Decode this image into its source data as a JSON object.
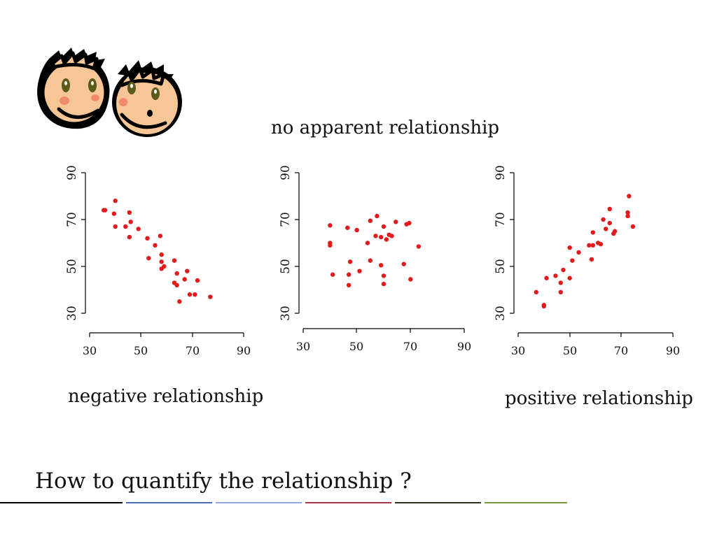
{
  "labels": {
    "middle_caption": "no apparent relationship",
    "left_caption": "negative relationship",
    "right_caption": "positive relationship",
    "question": "How to quantify the relationship ?"
  },
  "colors": {
    "point": "#e31a1c",
    "axis": "#000000",
    "footer_lines": [
      "#000000",
      "#4a6bb0",
      "#8ea8d8",
      "#a3354d",
      "#2d2d1f",
      "#7a9a3a"
    ]
  },
  "chart_data": [
    {
      "type": "scatter",
      "title": "",
      "xlabel": "",
      "ylabel": "",
      "xlim": [
        30,
        90
      ],
      "ylim": [
        30,
        90
      ],
      "xticks": [
        "30",
        "50",
        "70",
        "90"
      ],
      "yticks": [
        "30",
        "50",
        "70",
        "90"
      ],
      "grid": false,
      "points": [
        [
          35.5,
          74
        ],
        [
          36,
          74
        ],
        [
          40,
          78
        ],
        [
          39.5,
          72.5
        ],
        [
          40,
          67
        ],
        [
          44,
          67
        ],
        [
          45.5,
          73
        ],
        [
          46,
          69
        ],
        [
          45.5,
          62.5
        ],
        [
          49,
          66
        ],
        [
          52.5,
          62
        ],
        [
          53,
          53.5
        ],
        [
          55.5,
          59
        ],
        [
          57.5,
          63
        ],
        [
          58,
          55
        ],
        [
          58,
          49
        ],
        [
          59,
          50
        ],
        [
          58,
          52
        ],
        [
          63,
          52.5
        ],
        [
          63,
          43
        ],
        [
          64,
          47
        ],
        [
          64,
          42
        ],
        [
          65,
          35
        ],
        [
          67,
          44.5
        ],
        [
          68,
          48
        ],
        [
          69,
          38
        ],
        [
          71,
          38
        ],
        [
          72,
          44
        ],
        [
          77,
          37
        ]
      ]
    },
    {
      "type": "scatter",
      "title": "",
      "xlabel": "",
      "ylabel": "",
      "xlim": [
        30,
        90
      ],
      "ylim": [
        30,
        90
      ],
      "xticks": [
        "30",
        "50",
        "70",
        "90"
      ],
      "yticks": [
        "30",
        "50",
        "70",
        "90"
      ],
      "grid": false,
      "points": [
        [
          40,
          67.5
        ],
        [
          40,
          60
        ],
        [
          40,
          59
        ],
        [
          41,
          46.5
        ],
        [
          46.5,
          66.5
        ],
        [
          47,
          46.5
        ],
        [
          47,
          42
        ],
        [
          47.5,
          52
        ],
        [
          50,
          65.5
        ],
        [
          51,
          48
        ],
        [
          54,
          60
        ],
        [
          55,
          69.5
        ],
        [
          55,
          52.5
        ],
        [
          57.5,
          71.5
        ],
        [
          57,
          63
        ],
        [
          59,
          62.5
        ],
        [
          59,
          50.5
        ],
        [
          60,
          67
        ],
        [
          60,
          42.5
        ],
        [
          60,
          46
        ],
        [
          61,
          61.5
        ],
        [
          62,
          63.5
        ],
        [
          63,
          63
        ],
        [
          64.5,
          69
        ],
        [
          67.5,
          51
        ],
        [
          68.5,
          68
        ],
        [
          69.5,
          68.5
        ],
        [
          70,
          44.5
        ],
        [
          73,
          58.5
        ]
      ]
    },
    {
      "type": "scatter",
      "title": "",
      "xlabel": "",
      "ylabel": "",
      "xlim": [
        30,
        90
      ],
      "ylim": [
        30,
        90
      ],
      "xticks": [
        "30",
        "50",
        "70",
        "90"
      ],
      "yticks": [
        "30",
        "50",
        "70",
        "90"
      ],
      "grid": false,
      "points": [
        [
          37,
          39
        ],
        [
          40,
          33.5
        ],
        [
          40,
          33
        ],
        [
          41,
          45
        ],
        [
          44.5,
          46
        ],
        [
          46.5,
          39
        ],
        [
          46.5,
          43
        ],
        [
          47.5,
          48.5
        ],
        [
          50,
          58
        ],
        [
          50,
          45
        ],
        [
          51,
          52.5
        ],
        [
          53.5,
          56
        ],
        [
          57.5,
          59
        ],
        [
          58.5,
          53
        ],
        [
          59,
          59
        ],
        [
          59,
          64.5
        ],
        [
          61,
          60
        ],
        [
          62,
          59.5
        ],
        [
          63,
          70
        ],
        [
          64,
          66
        ],
        [
          65.5,
          74.5
        ],
        [
          65.5,
          68.5
        ],
        [
          67,
          64
        ],
        [
          67.5,
          65
        ],
        [
          72.5,
          71.5
        ],
        [
          72.5,
          73
        ],
        [
          73,
          80
        ],
        [
          74.5,
          67
        ]
      ]
    }
  ]
}
